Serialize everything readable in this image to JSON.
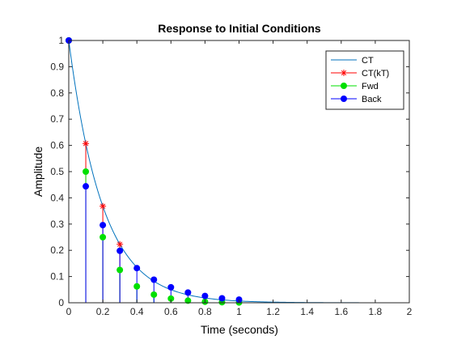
{
  "chart_data": {
    "type": "line",
    "title": "Response to Initial Conditions",
    "xlabel": "Time (seconds)",
    "ylabel": "Amplitude",
    "xlim": [
      0,
      2
    ],
    "ylim": [
      0,
      1
    ],
    "xticks": [
      0,
      0.2,
      0.4,
      0.6,
      0.8,
      1,
      1.2,
      1.4,
      1.6,
      1.8,
      2
    ],
    "yticks": [
      0,
      0.1,
      0.2,
      0.3,
      0.4,
      0.5,
      0.6,
      0.7,
      0.8,
      0.9,
      1
    ],
    "xtick_labels": [
      "0",
      "0.2",
      "0.4",
      "0.6",
      "0.8",
      "1",
      "1.2",
      "1.4",
      "1.6",
      "1.8",
      "2"
    ],
    "ytick_labels": [
      "0",
      "0.1",
      "0.2",
      "0.3",
      "0.4",
      "0.5",
      "0.6",
      "0.7",
      "0.8",
      "0.9",
      "1"
    ],
    "grid": false,
    "legend_position": "top-right",
    "series": [
      {
        "name": "CT",
        "style": "line",
        "color": "#0072BD",
        "x": [
          0,
          0.05,
          0.1,
          0.15,
          0.2,
          0.25,
          0.3,
          0.35,
          0.4,
          0.45,
          0.5,
          0.55,
          0.6,
          0.65,
          0.7,
          0.75,
          0.8,
          0.85,
          0.9,
          0.95,
          1.0,
          1.1,
          1.2,
          1.4,
          1.6,
          1.8,
          2.0
        ],
        "y": [
          1.0,
          0.779,
          0.607,
          0.472,
          0.368,
          0.287,
          0.223,
          0.174,
          0.135,
          0.105,
          0.082,
          0.064,
          0.05,
          0.039,
          0.03,
          0.024,
          0.018,
          0.014,
          0.011,
          0.009,
          0.007,
          0.004,
          0.002,
          0.001,
          0.0,
          0.0,
          0.0
        ]
      },
      {
        "name": "CT(kT)",
        "style": "stem-star",
        "color": "#FF0000",
        "x": [
          0,
          0.1,
          0.2,
          0.3
        ],
        "y": [
          1.0,
          0.607,
          0.368,
          0.223
        ]
      },
      {
        "name": "Fwd",
        "style": "stem-dot",
        "color": "#00E000",
        "x": [
          0,
          0.1,
          0.2,
          0.3,
          0.4,
          0.5,
          0.6,
          0.7,
          0.8,
          0.9,
          1.0
        ],
        "y": [
          1.0,
          0.5,
          0.25,
          0.125,
          0.0625,
          0.031,
          0.016,
          0.008,
          0.004,
          0.002,
          0.001
        ]
      },
      {
        "name": "Back",
        "style": "stem-dot",
        "color": "#0000FF",
        "x": [
          0,
          0.1,
          0.2,
          0.3,
          0.4,
          0.5,
          0.6,
          0.7,
          0.8,
          0.9,
          1.0
        ],
        "y": [
          1.0,
          0.444,
          0.296,
          0.198,
          0.132,
          0.088,
          0.059,
          0.039,
          0.026,
          0.017,
          0.012
        ]
      }
    ]
  }
}
